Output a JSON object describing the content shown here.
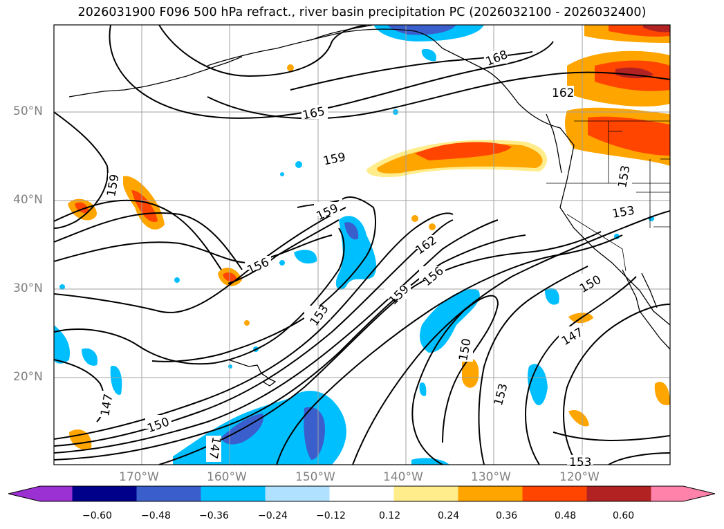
{
  "title": "2026031900 F096 500 hPa refract., river basin precipitation PC (2026032100 - 2026032400)",
  "lat_labels": [
    "50°N",
    "40°N",
    "30°N",
    "20°N"
  ],
  "lon_labels": [
    "170°W",
    "160°W",
    "150°W",
    "140°W",
    "130°W",
    "120°W"
  ],
  "contour_labels": [
    "168",
    "162",
    "165",
    "159",
    "159",
    "159",
    "153",
    "153",
    "162",
    "156",
    "156",
    "159",
    "153",
    "150",
    "150",
    "147",
    "147",
    "150",
    "153",
    "147",
    "153"
  ],
  "colorbar": {
    "ticks": [
      "−0.60",
      "−0.48",
      "−0.36",
      "−0.24",
      "−0.12",
      "0.12",
      "0.24",
      "0.36",
      "0.48",
      "0.60"
    ],
    "colors": [
      "#9b30d3",
      "#00008b",
      "#3a5fcd",
      "#00bfff",
      "#b0e2ff",
      "#ffffff",
      "#ffec8b",
      "#ffa500",
      "#ff4500",
      "#b22222",
      "#ff82ab"
    ]
  }
}
